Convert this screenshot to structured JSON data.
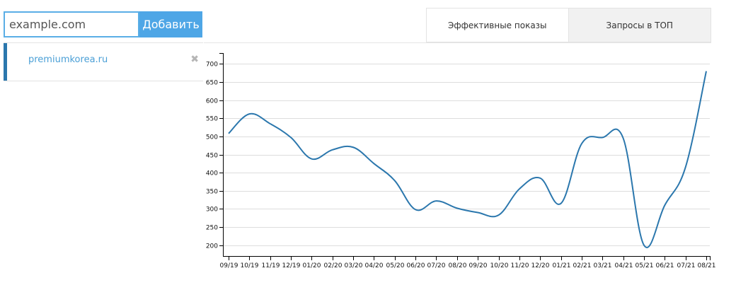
{
  "add_form": {
    "placeholder": "example.com",
    "button_label": "Добавить"
  },
  "tabs": [
    {
      "label": "Эффективные показы",
      "active": true
    },
    {
      "label": "Запросы в ТОП",
      "active": false
    }
  ],
  "sites": [
    {
      "name": "premiumkorea.ru",
      "remove_icon": "close-icon"
    }
  ],
  "colors": {
    "accent": "#4ea6e6",
    "line": "#2b77ad",
    "grid": "#dddddd"
  },
  "chart_data": {
    "type": "line",
    "title": "",
    "xlabel": "",
    "ylabel": "",
    "ylim": [
      170,
      730
    ],
    "yticks": [
      200,
      250,
      300,
      350,
      400,
      450,
      500,
      550,
      600,
      650,
      700
    ],
    "grid": true,
    "categories": [
      "09/19",
      "10/19",
      "11/19",
      "12/19",
      "01/20",
      "02/20",
      "03/20",
      "04/20",
      "05/20",
      "06/20",
      "07/20",
      "08/20",
      "09/20",
      "10/20",
      "11/20",
      "12/20",
      "01/21",
      "02/21",
      "03/21",
      "04/21",
      "05/21",
      "06/21",
      "07/21",
      "08/21"
    ],
    "series": [
      {
        "values": [
          508,
          562,
          535,
          497,
          438,
          463,
          470,
          425,
          378,
          298,
          322,
          302,
          290,
          283,
          355,
          385,
          315,
          480,
          497,
          495,
          200,
          310,
          415,
          680
        ]
      }
    ]
  }
}
